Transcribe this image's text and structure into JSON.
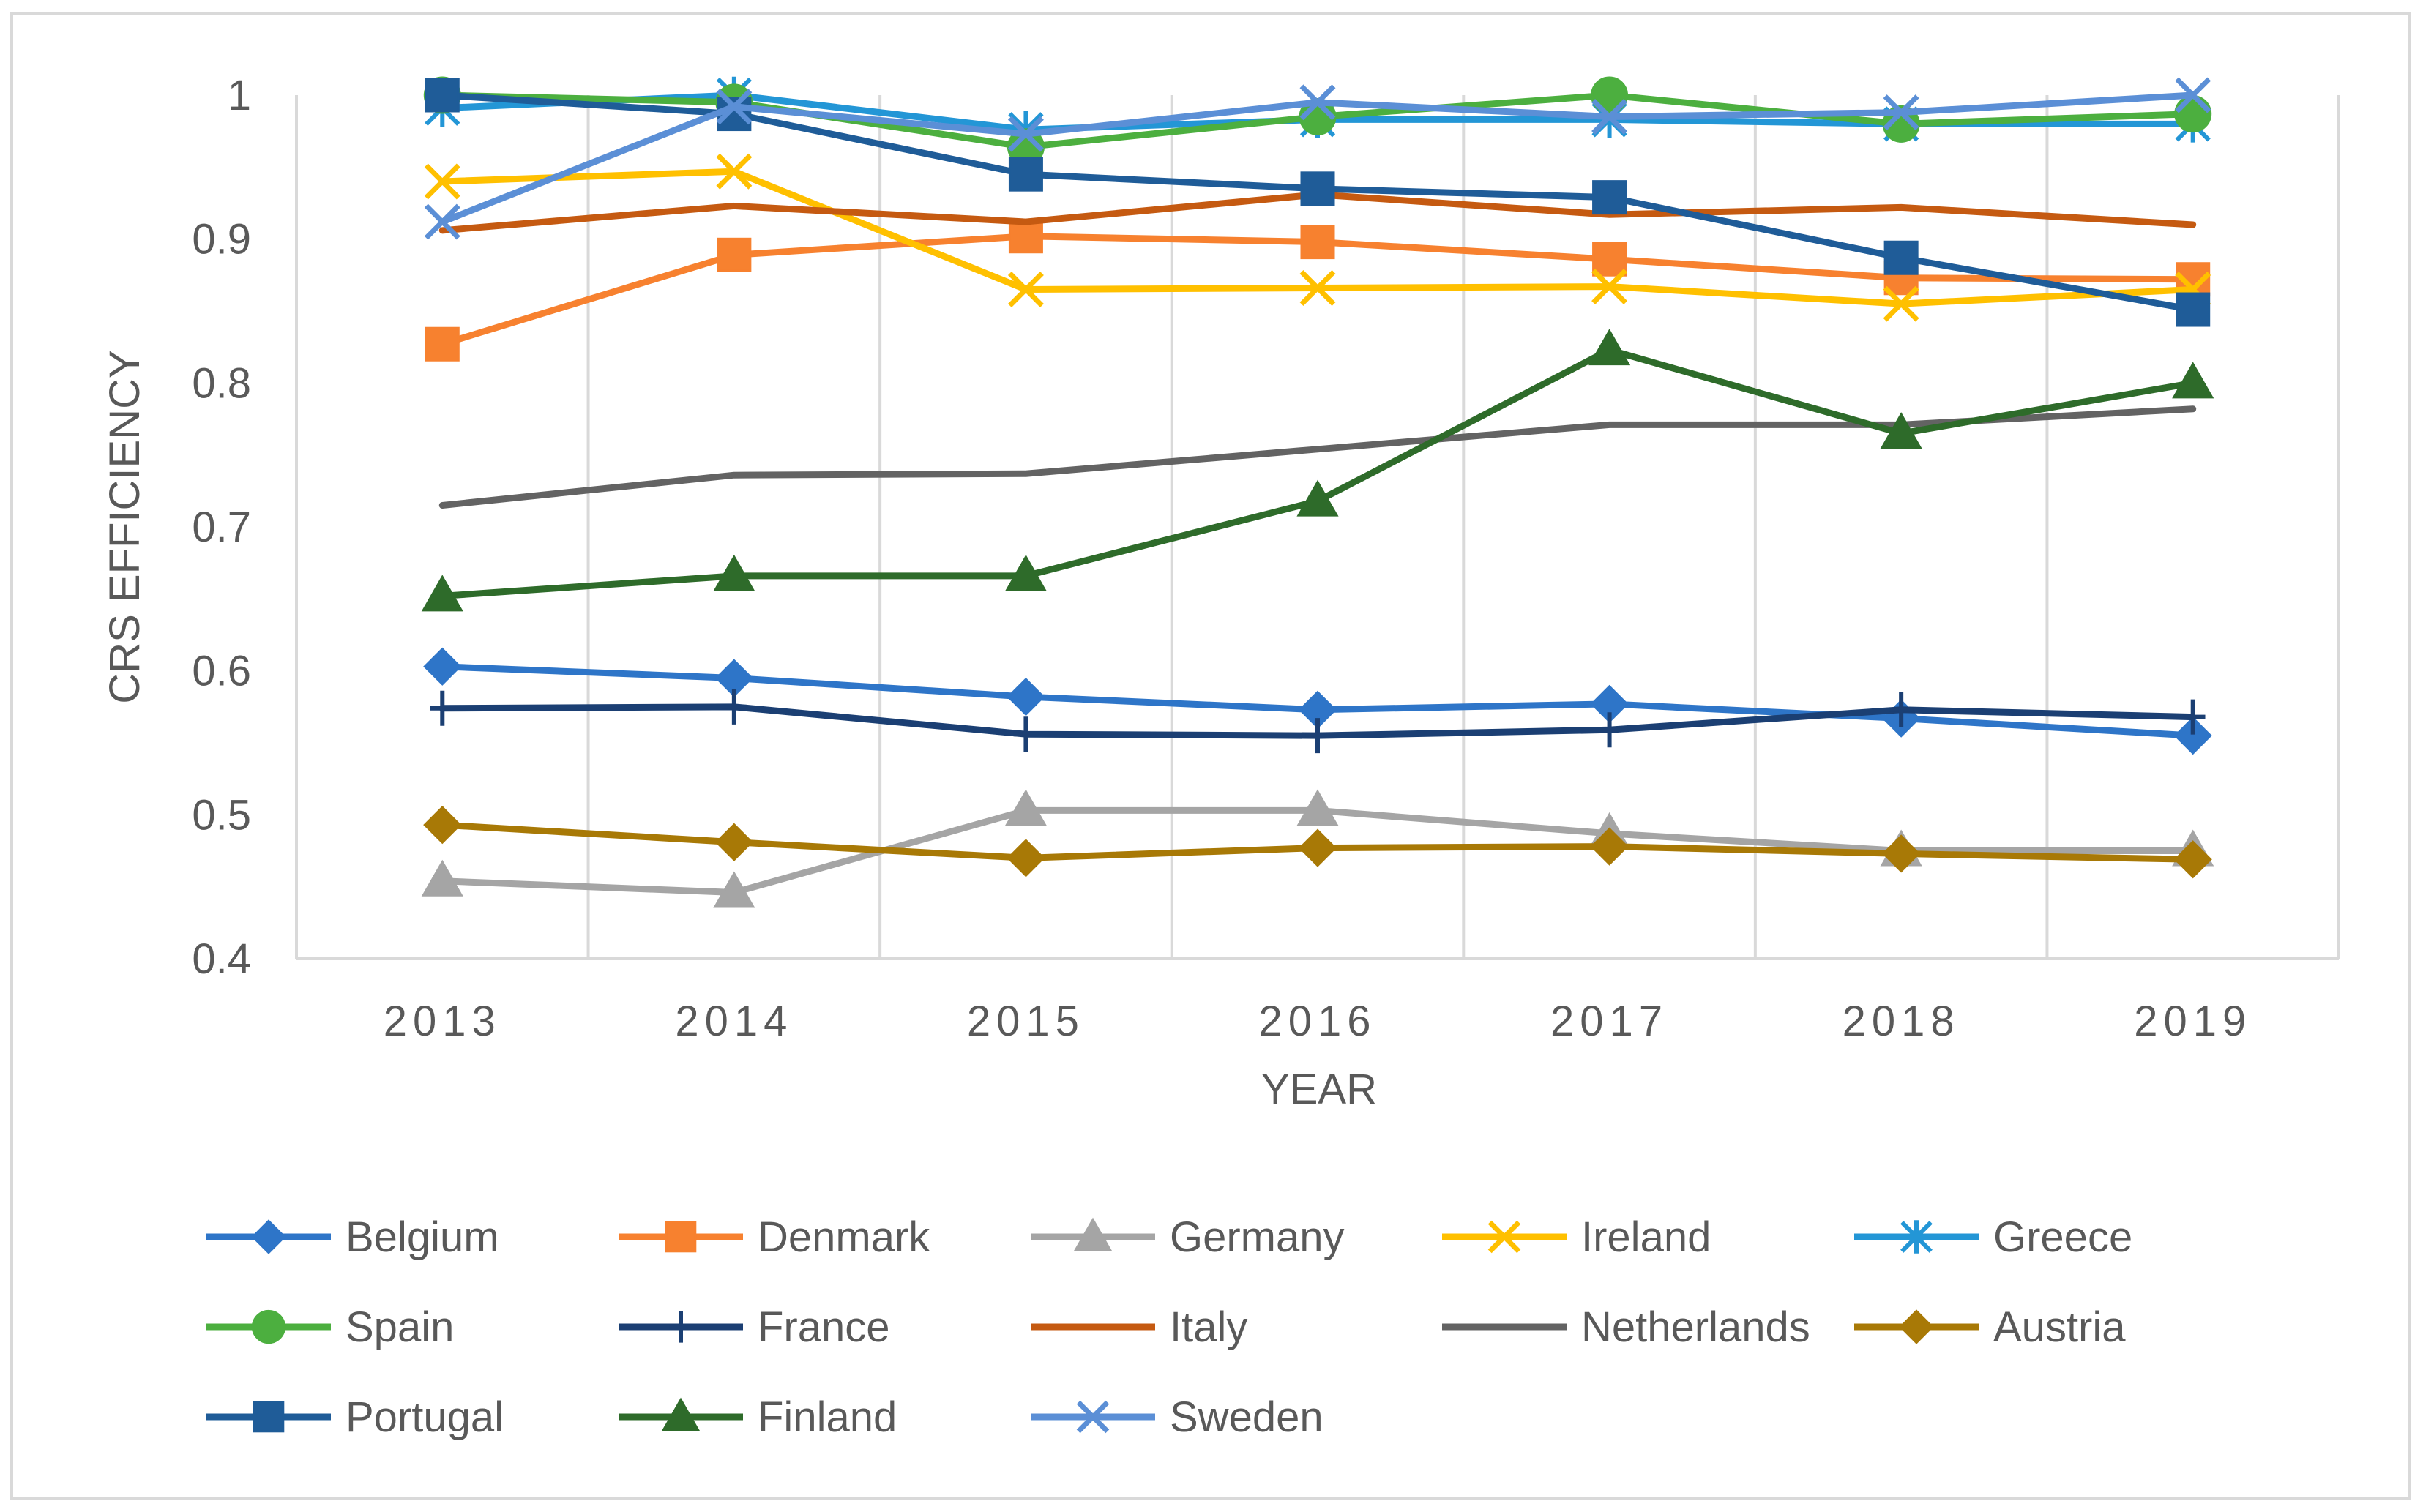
{
  "chart_data": {
    "type": "line",
    "title": "",
    "xlabel": "YEAR",
    "ylabel": "CRS EFFICIENCY",
    "ylim": [
      0.4,
      1.0
    ],
    "yticks": [
      0.4,
      0.5,
      0.6,
      0.7,
      0.8,
      0.9,
      1
    ],
    "ytick_labels": [
      "0.4",
      "0.5",
      "0.6",
      "0.7",
      "0.8",
      "0.9",
      "1"
    ],
    "categories": [
      "2013",
      "2014",
      "2015",
      "2016",
      "2017",
      "2018",
      "2019"
    ],
    "grid": "vertical",
    "legend_position": "bottom",
    "series": [
      {
        "name": "Belgium",
        "color": "#2E75C8",
        "marker": "diamond",
        "values": [
          0.603,
          0.595,
          0.582,
          0.573,
          0.577,
          0.567,
          0.555
        ]
      },
      {
        "name": "Denmark",
        "color": "#F7812F",
        "marker": "square",
        "values": [
          0.827,
          0.889,
          0.902,
          0.898,
          0.886,
          0.873,
          0.872
        ]
      },
      {
        "name": "Germany",
        "color": "#A5A5A5",
        "marker": "triangle",
        "values": [
          0.454,
          0.446,
          0.503,
          0.503,
          0.487,
          0.475,
          0.475
        ]
      },
      {
        "name": "Ireland",
        "color": "#FFC000",
        "marker": "x",
        "values": [
          0.94,
          0.947,
          0.865,
          0.866,
          0.867,
          0.855,
          0.865
        ]
      },
      {
        "name": "Greece",
        "color": "#2396D6",
        "marker": "asterisk",
        "values": [
          0.991,
          1.0,
          0.976,
          0.983,
          0.983,
          0.98,
          0.98
        ]
      },
      {
        "name": "Spain",
        "color": "#4CAF3F",
        "marker": "circle",
        "values": [
          1.0,
          0.995,
          0.964,
          0.985,
          1.0,
          0.98,
          0.987
        ]
      },
      {
        "name": "France",
        "color": "#1B3F73",
        "marker": "plus",
        "values": [
          0.574,
          0.575,
          0.556,
          0.555,
          0.559,
          0.573,
          0.568
        ]
      },
      {
        "name": "Italy",
        "color": "#C55A11",
        "marker": "none",
        "values": [
          0.906,
          0.923,
          0.912,
          0.931,
          0.917,
          0.922,
          0.91
        ]
      },
      {
        "name": "Netherlands",
        "color": "#636363",
        "marker": "none",
        "values": [
          0.715,
          0.736,
          0.737,
          0.754,
          0.771,
          0.771,
          0.782
        ]
      },
      {
        "name": "Austria",
        "color": "#A87906",
        "marker": "diamond",
        "values": [
          0.493,
          0.481,
          0.47,
          0.477,
          0.478,
          0.473,
          0.469
        ]
      },
      {
        "name": "Portugal",
        "color": "#1F5C98",
        "marker": "square",
        "values": [
          1.0,
          0.987,
          0.945,
          0.935,
          0.929,
          0.887,
          0.851
        ]
      },
      {
        "name": "Finland",
        "color": "#2E6B2A",
        "marker": "triangle",
        "values": [
          0.652,
          0.666,
          0.666,
          0.718,
          0.823,
          0.765,
          0.8
        ]
      },
      {
        "name": "Sweden",
        "color": "#5B8FD6",
        "marker": "x",
        "values": [
          0.912,
          0.992,
          0.973,
          0.995,
          0.985,
          0.988,
          1.0
        ]
      }
    ]
  }
}
